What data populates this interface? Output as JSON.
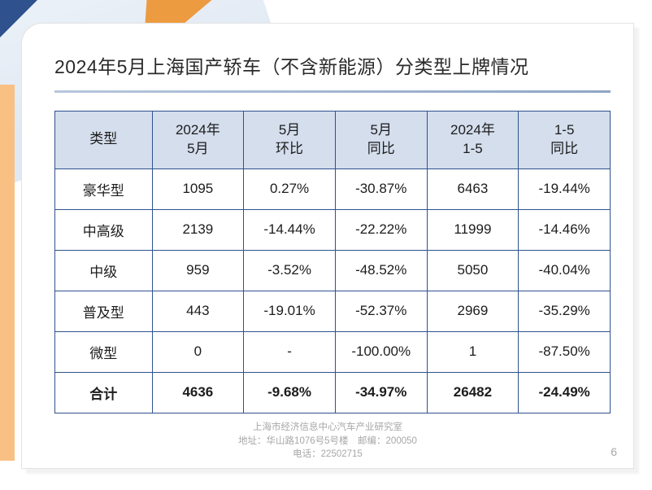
{
  "title": "2024年5月上海国产轿车（不含新能源）分类型上牌情况",
  "table": {
    "headers": [
      "类型",
      "2024年\n5月",
      "5月\n环比",
      "5月\n同比",
      "2024年\n1-5",
      "1-5\n同比"
    ],
    "rows": [
      [
        "豪华型",
        "1095",
        "0.27%",
        "-30.87%",
        "6463",
        "-19.44%"
      ],
      [
        "中高级",
        "2139",
        "-14.44%",
        "-22.22%",
        "11999",
        "-14.46%"
      ],
      [
        "中级",
        "959",
        "-3.52%",
        "-48.52%",
        "5050",
        "-40.04%"
      ],
      [
        "普及型",
        "443",
        "-19.01%",
        "-52.37%",
        "2969",
        "-35.29%"
      ],
      [
        "微型",
        "0",
        "-",
        "-100.00%",
        "1",
        "-87.50%"
      ]
    ],
    "total": [
      "合计",
      "4636",
      "-9.68%",
      "-34.97%",
      "26482",
      "-24.49%"
    ]
  },
  "footer": {
    "line1": "上海市经济信息中心汽车产业研究室",
    "line2": "地址：华山路1076号5号楼　邮编：200050",
    "line3": "电话：22502715"
  },
  "page_number": "6",
  "colors": {
    "header_bg": "#d4deed",
    "border": "#2f528f",
    "accent_orange": "#ed9b40",
    "left_bar": "#f9c083",
    "corner_blue": "#2f528f"
  }
}
